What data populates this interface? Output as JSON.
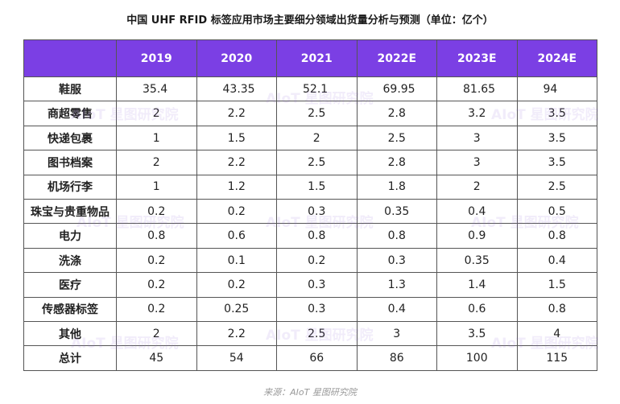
{
  "title": "中国 UHF RFID 标签应用市场主要细分领域出货量分析与预测（单位：亿个）",
  "header": {
    "corner": "",
    "years": [
      "2019",
      "2020",
      "2021",
      "2022E",
      "2023E",
      "2024E"
    ]
  },
  "rows": [
    {
      "category": "鞋服",
      "values": [
        "35.4",
        "43.35",
        "52.1",
        "69.95",
        "81.65",
        "94"
      ]
    },
    {
      "category": "商超零售",
      "values": [
        "2",
        "2.2",
        "2.5",
        "2.8",
        "3.2",
        "3.5"
      ]
    },
    {
      "category": "快递包裹",
      "values": [
        "1",
        "1.5",
        "2",
        "2.5",
        "3",
        "3.5"
      ]
    },
    {
      "category": "图书档案",
      "values": [
        "2",
        "2.2",
        "2.5",
        "2.8",
        "3",
        "3.5"
      ]
    },
    {
      "category": "机场行李",
      "values": [
        "1",
        "1.2",
        "1.5",
        "1.8",
        "2",
        "2.5"
      ]
    },
    {
      "category": "珠宝与贵重物品",
      "values": [
        "0.2",
        "0.2",
        "0.3",
        "0.35",
        "0.4",
        "0.5"
      ]
    },
    {
      "category": "电力",
      "values": [
        "0.8",
        "0.6",
        "0.8",
        "0.8",
        "0.9",
        "0.8"
      ]
    },
    {
      "category": "洗涤",
      "values": [
        "0.2",
        "0.1",
        "0.2",
        "0.3",
        "0.35",
        "0.4"
      ]
    },
    {
      "category": "医疗",
      "values": [
        "0.2",
        "0.2",
        "0.3",
        "1.3",
        "1.4",
        "1.5"
      ]
    },
    {
      "category": "传感器标签",
      "values": [
        "0.2",
        "0.25",
        "0.3",
        "0.4",
        "0.6",
        "0.8"
      ]
    },
    {
      "category": "其他",
      "values": [
        "2",
        "2.2",
        "2.5",
        "3",
        "3.5",
        "4"
      ]
    },
    {
      "category": "总计",
      "values": [
        "45",
        "54",
        "66",
        "86",
        "100",
        "115"
      ]
    }
  ],
  "source": "来源：AIoT 星图研究院",
  "watermark": "AIoT 星图研究院",
  "colors": {
    "header_bg": "#7b3fe4",
    "header_text": "#ffffff",
    "watermark": "#966edc"
  }
}
